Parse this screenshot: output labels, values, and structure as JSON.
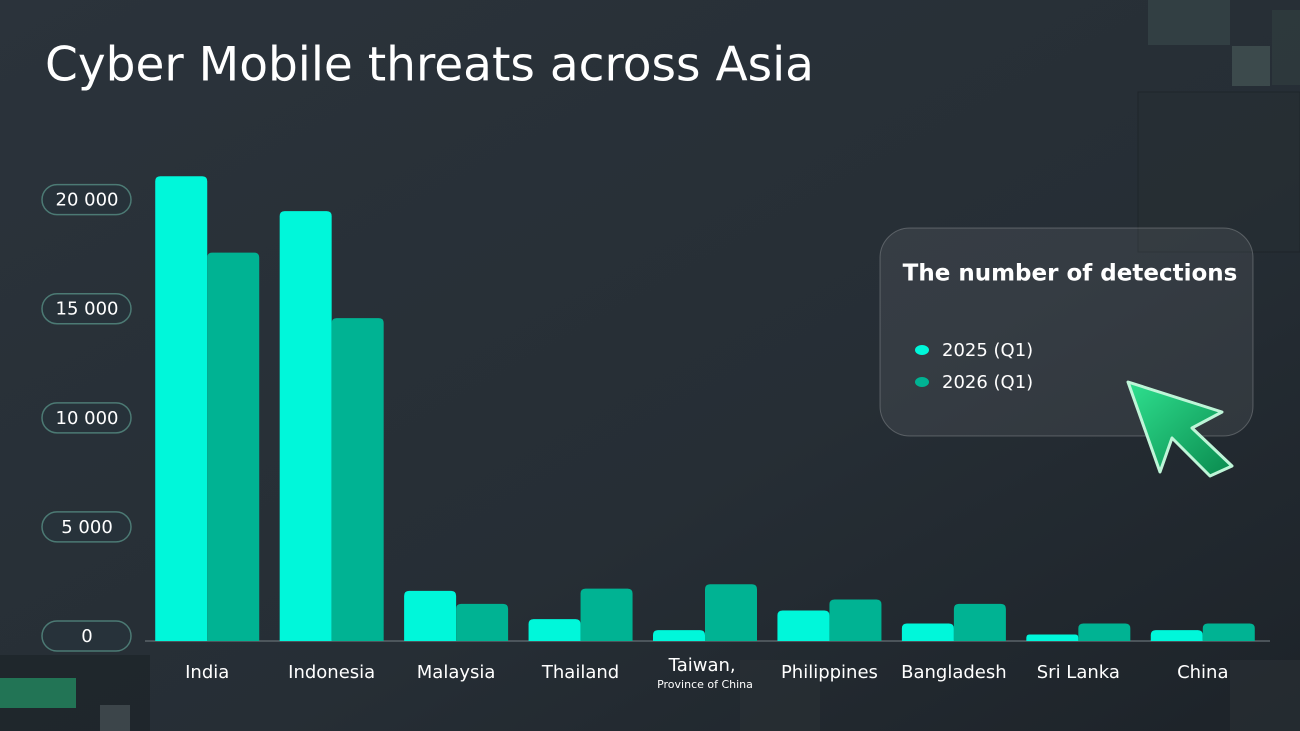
{
  "chart_data": {
    "type": "bar",
    "title": "Cyber Mobile threats across Asia",
    "categories": [
      "India",
      "Indonesia",
      "Malaysia",
      "Thailand",
      "Taiwan, Province of China",
      "Philippines",
      "Bangladesh",
      "Sri Lanka",
      "China"
    ],
    "series": [
      {
        "name": "2025 (Q1)",
        "color": "#00f7da",
        "values": [
          21300,
          19700,
          2300,
          1000,
          500,
          1400,
          800,
          300,
          500
        ]
      },
      {
        "name": "2026 (Q1)",
        "color": "#00b393",
        "values": [
          17800,
          14800,
          1700,
          2400,
          2600,
          1900,
          1700,
          800,
          800
        ]
      }
    ],
    "legend_title": "The number of detections",
    "ylim": [
      0,
      22000
    ],
    "yticks": [
      0,
      {
        "value": 5000,
        "label": "5 000"
      },
      {
        "value": 10000,
        "label": "10 000"
      },
      {
        "value": 15000,
        "label": "15 000"
      },
      {
        "value": 20000,
        "label": "20 000"
      }
    ],
    "grid": false
  }
}
